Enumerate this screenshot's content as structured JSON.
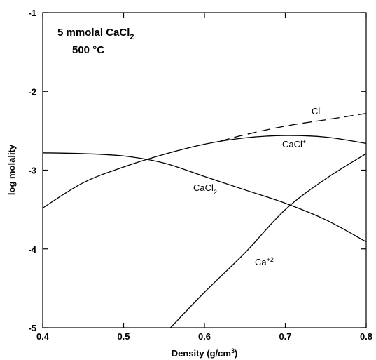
{
  "chart_data": {
    "type": "line",
    "title": "",
    "annotations": [
      {
        "id": "title-line1",
        "base": "5 mmolal CaCl",
        "sub": "2"
      },
      {
        "id": "title-line2",
        "base": "500 °C"
      }
    ],
    "xlabel": {
      "base": "Density (g/cm",
      "sup": "3",
      "tail": ")"
    },
    "ylabel": "log molality",
    "xlim": [
      0.4,
      0.8
    ],
    "ylim": [
      -5,
      -1
    ],
    "xticks": [
      0.4,
      0.5,
      0.6,
      0.7,
      0.8
    ],
    "xtick_labels": [
      "0.4",
      "0.5",
      "0.6",
      "0.7",
      "0.8"
    ],
    "yticks": [
      -5,
      -4,
      -3,
      -2,
      -1
    ],
    "ytick_labels": [
      "-5",
      "-4",
      "-3",
      "-2",
      "-1"
    ],
    "grid": false,
    "series": [
      {
        "name": "Cl-",
        "label": {
          "base": "Cl",
          "sup": "-"
        },
        "style": "dashed",
        "x": [
          0.62,
          0.65,
          0.7,
          0.75,
          0.8
        ],
        "y": [
          -2.63,
          -2.55,
          -2.44,
          -2.36,
          -2.28
        ]
      },
      {
        "name": "CaCl+",
        "label": {
          "base": "CaCl",
          "sup": "+"
        },
        "style": "solid",
        "x": [
          0.4,
          0.45,
          0.5,
          0.55,
          0.6,
          0.65,
          0.7,
          0.75,
          0.8
        ],
        "y": [
          -3.48,
          -3.16,
          -2.96,
          -2.8,
          -2.67,
          -2.59,
          -2.56,
          -2.58,
          -2.66
        ]
      },
      {
        "name": "CaCl2",
        "label": {
          "base": "CaCl",
          "sub": "2"
        },
        "style": "solid",
        "x": [
          0.4,
          0.45,
          0.5,
          0.55,
          0.6,
          0.65,
          0.7,
          0.75,
          0.8
        ],
        "y": [
          -2.78,
          -2.79,
          -2.82,
          -2.91,
          -3.08,
          -3.25,
          -3.42,
          -3.63,
          -3.91
        ]
      },
      {
        "name": "Ca+2",
        "label": {
          "base": "Ca",
          "sup": "+2"
        },
        "style": "solid",
        "x": [
          0.558,
          0.6,
          0.65,
          0.7,
          0.75,
          0.8
        ],
        "y": [
          -5.0,
          -4.55,
          -4.05,
          -3.5,
          -3.11,
          -2.79
        ]
      }
    ]
  }
}
